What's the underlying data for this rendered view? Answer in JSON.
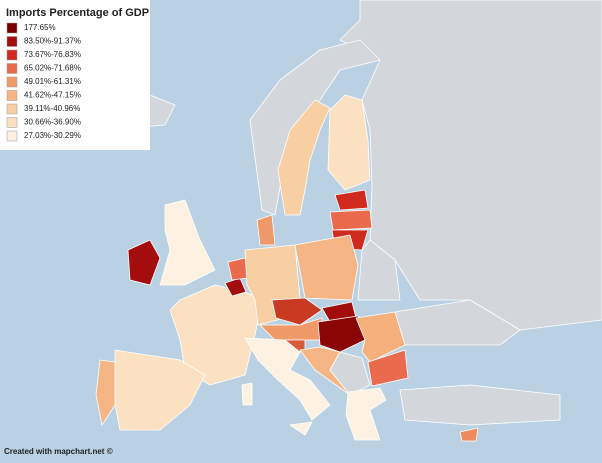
{
  "title": "Imports Percentage of GDP",
  "legend": {
    "items": [
      {
        "label": "177.65%",
        "color": "#7a0000"
      },
      {
        "label": "83.50%-91.37%",
        "color": "#a30d0d"
      },
      {
        "label": "73.67%-76.83%",
        "color": "#d02a1e"
      },
      {
        "label": "65.02%-71.68%",
        "color": "#ea6a4e"
      },
      {
        "label": "49.01%-61.31%",
        "color": "#f09a6a"
      },
      {
        "label": "41.62%-47.15%",
        "color": "#f5b585"
      },
      {
        "label": "39.11%-40.96%",
        "color": "#f8cfa3"
      },
      {
        "label": "30.66%-36.90%",
        "color": "#fbe1c2"
      },
      {
        "label": "27.03%-30.29%",
        "color": "#fdf1e2"
      }
    ]
  },
  "credit": "Created with mapchart.net ©"
}
